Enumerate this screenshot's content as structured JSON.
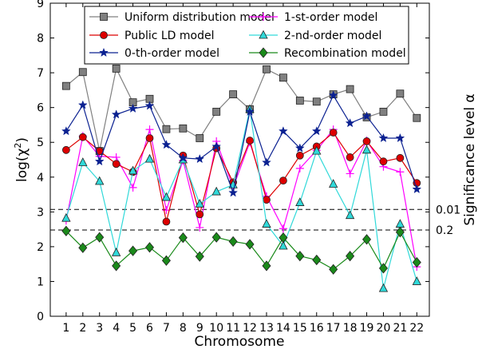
{
  "chart_data": {
    "type": "line",
    "xlabel": "Chromosome",
    "ylabel_main": "log(χ",
    "ylabel_sup": "2",
    "ylabel_close": ")",
    "right_label": "Significance level α",
    "x": [
      1,
      2,
      3,
      4,
      5,
      6,
      7,
      8,
      9,
      10,
      11,
      12,
      13,
      14,
      15,
      16,
      17,
      18,
      19,
      20,
      21,
      22
    ],
    "xticks": [
      "1",
      "2",
      "3",
      "4",
      "5",
      "6",
      "7",
      "8",
      "9",
      "10",
      "11",
      "12",
      "13",
      "14",
      "15",
      "16",
      "17",
      "18",
      "19",
      "20",
      "21",
      "22"
    ],
    "xlim": [
      0.05,
      22.75
    ],
    "ylim": [
      0,
      9
    ],
    "yticks": [
      "0",
      "1",
      "2",
      "3",
      "4",
      "5",
      "6",
      "7",
      "8",
      "9"
    ],
    "significance_lines": [
      {
        "label": "0.01",
        "value": 3.07
      },
      {
        "label": "0.2",
        "value": 2.48
      }
    ],
    "legend_location": "top-center",
    "series": [
      {
        "name": "Uniform distribution model",
        "color": "#808080",
        "marker": "square",
        "values": [
          6.62,
          7.02,
          4.75,
          7.12,
          6.15,
          6.25,
          5.38,
          5.4,
          5.12,
          5.88,
          6.38,
          5.95,
          7.1,
          6.86,
          6.2,
          6.17,
          6.38,
          6.53,
          5.72,
          5.88,
          6.4,
          5.7
        ]
      },
      {
        "name": "1-st-order model",
        "color": "#ff00ff",
        "marker": "plus",
        "values": [
          2.75,
          5.18,
          4.6,
          4.57,
          3.7,
          5.37,
          3.05,
          4.48,
          2.55,
          5.03,
          3.7,
          5.0,
          3.45,
          2.52,
          4.25,
          4.77,
          5.37,
          4.1,
          5.05,
          4.3,
          4.15,
          1.42
        ]
      },
      {
        "name": "Public LD model",
        "color": "#dd0000",
        "marker": "circle",
        "values": [
          4.78,
          5.15,
          4.75,
          4.38,
          4.15,
          5.12,
          2.72,
          4.62,
          2.93,
          4.83,
          3.85,
          5.05,
          3.35,
          3.9,
          4.62,
          4.88,
          5.28,
          4.57,
          5.03,
          4.45,
          4.55,
          3.83
        ]
      },
      {
        "name": "2-nd-order model",
        "color": "#30d9d9",
        "marker": "triangle",
        "values": [
          2.82,
          4.42,
          3.88,
          1.83,
          4.18,
          4.52,
          3.42,
          4.5,
          3.23,
          3.58,
          3.78,
          5.95,
          2.65,
          2.02,
          3.27,
          4.75,
          3.8,
          2.9,
          4.78,
          0.8,
          2.65,
          1.0
        ]
      },
      {
        "name": "0-th-order model",
        "color": "#0b2191",
        "marker": "star",
        "values": [
          5.32,
          6.07,
          4.45,
          5.8,
          5.97,
          6.05,
          4.93,
          4.55,
          4.52,
          4.88,
          3.55,
          5.88,
          4.42,
          5.32,
          4.83,
          5.32,
          6.35,
          5.55,
          5.75,
          5.12,
          5.12,
          3.65
        ]
      },
      {
        "name": "Recombination model",
        "color": "#1a8a1a",
        "marker": "diamond",
        "values": [
          2.45,
          1.97,
          2.27,
          1.45,
          1.88,
          1.98,
          1.6,
          2.26,
          1.72,
          2.27,
          2.15,
          2.07,
          1.45,
          2.26,
          1.73,
          1.62,
          1.35,
          1.73,
          2.21,
          1.38,
          2.42,
          1.55
        ]
      }
    ]
  }
}
